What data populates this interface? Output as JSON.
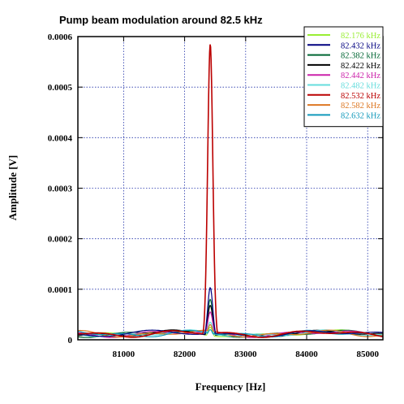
{
  "chart_data": {
    "type": "line",
    "title": "Pump beam modulation around 82.5 kHz",
    "xlabel": "Frequency [Hz]",
    "ylabel": "Amplitude [V]",
    "xlim": [
      80250,
      85250
    ],
    "ylim": [
      0,
      0.0006
    ],
    "x_ticks": [
      81000,
      82000,
      83000,
      84000,
      85000
    ],
    "x_tick_labels": [
      "81000",
      "82000",
      "83000",
      "84000",
      "85000"
    ],
    "y_ticks": [
      0,
      0.0001,
      0.0002,
      0.0003,
      0.0004,
      0.0005,
      0.0006
    ],
    "y_tick_labels": [
      "0",
      "0.0001",
      "0.0002",
      "0.0003",
      "0.0004",
      "0.0005",
      "0.0006"
    ],
    "grid": true,
    "legend_position": "top-right",
    "peak_x": 82420,
    "peak_width_hz": 60,
    "series": [
      {
        "name": "82.176 kHz",
        "color": "#99ee33",
        "peak": 2.5e-05
      },
      {
        "name": "82.432 kHz",
        "color": "#000080",
        "peak": 0.000103
      },
      {
        "name": "82.382 kHz",
        "color": "#006633",
        "peak": 8e-05
      },
      {
        "name": "82.422 kHz",
        "color": "#000000",
        "peak": 6.8e-05
      },
      {
        "name": "82.442 kHz",
        "color": "#cc22aa",
        "peak": 5.5e-05
      },
      {
        "name": "82.482 kHz",
        "color": "#66dddd",
        "peak": 3.5e-05
      },
      {
        "name": "82.532 kHz",
        "color": "#bb0000",
        "peak": 0.000585
      },
      {
        "name": "82.582 kHz",
        "color": "#dd7722",
        "peak": 3e-05
      },
      {
        "name": "82.632 kHz",
        "color": "#1199bb",
        "peak": 2e-05
      }
    ]
  }
}
